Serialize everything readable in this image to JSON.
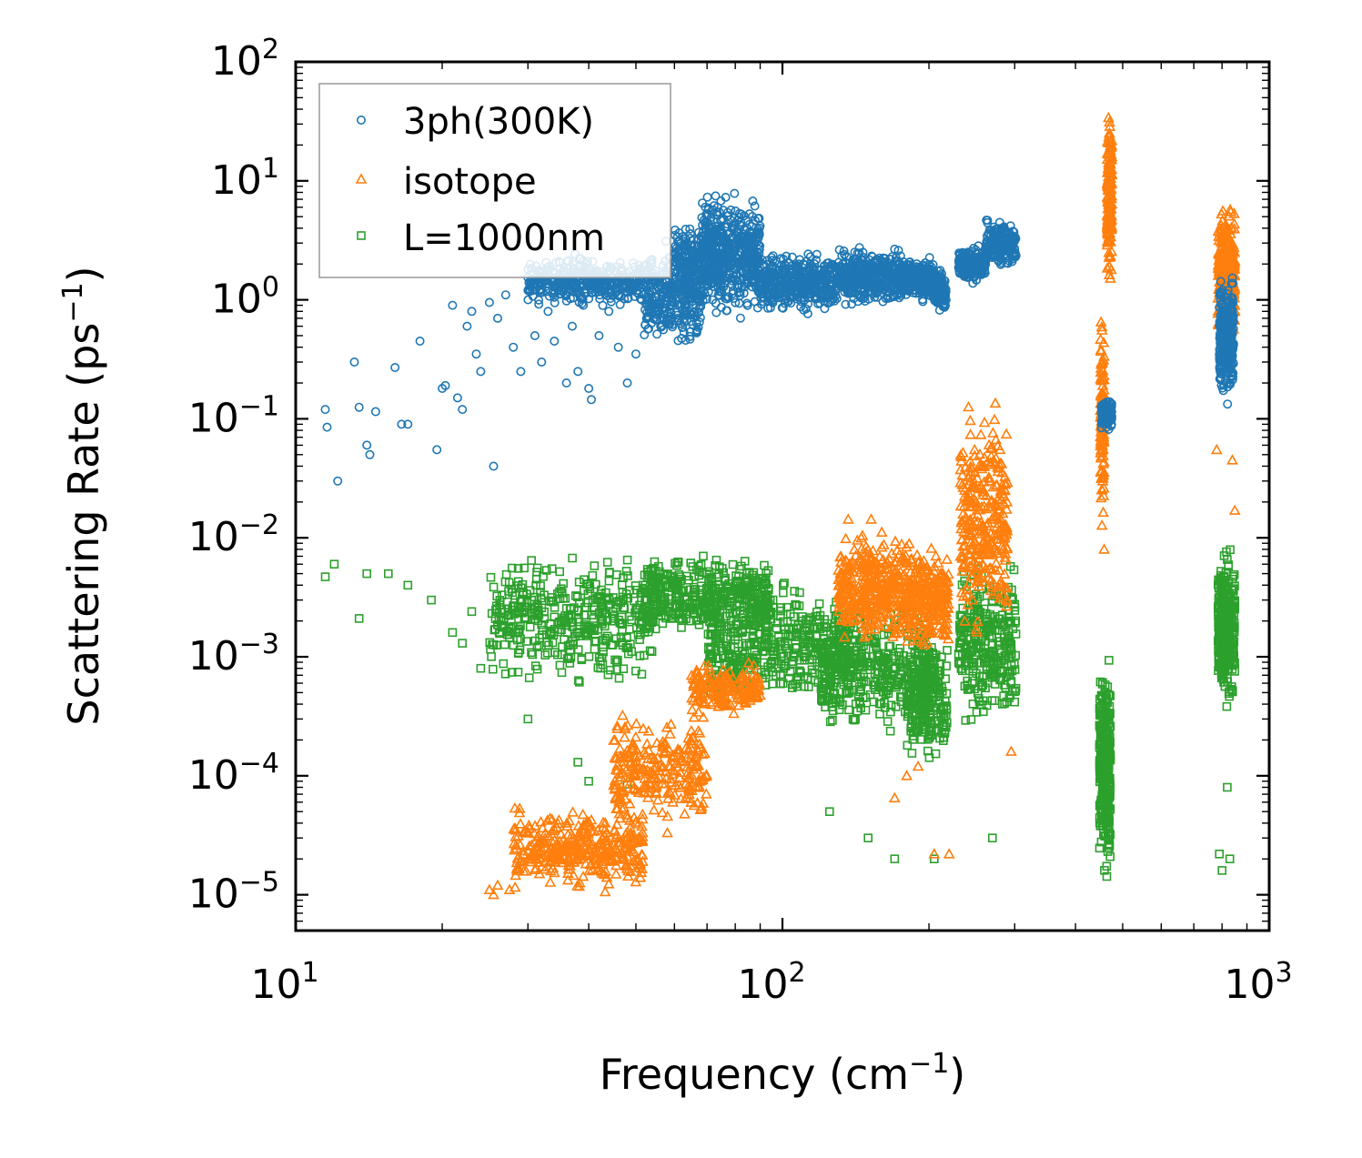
{
  "chart_data": {
    "type": "scatter",
    "title": "",
    "xlabel": "Frequency (cm",
    "xlabel_sup": "−1",
    "xlabel_close": ")",
    "ylabel": "Scattering Rate (ps",
    "ylabel_sup": "−1",
    "ylabel_close": ")",
    "xscale": "log",
    "yscale": "log",
    "xlim": [
      10,
      1000
    ],
    "ylim": [
      5e-06,
      100
    ],
    "x_ticks": [
      {
        "value": 10,
        "base": "10",
        "exp": "1"
      },
      {
        "value": 100,
        "base": "10",
        "exp": "2"
      },
      {
        "value": 1000,
        "base": "10",
        "exp": "3"
      }
    ],
    "y_ticks": [
      {
        "value": 1e-05,
        "base": "10",
        "exp": "−5"
      },
      {
        "value": 0.0001,
        "base": "10",
        "exp": "−4"
      },
      {
        "value": 0.001,
        "base": "10",
        "exp": "−3"
      },
      {
        "value": 0.01,
        "base": "10",
        "exp": "−2"
      },
      {
        "value": 0.1,
        "base": "10",
        "exp": "−1"
      },
      {
        "value": 1,
        "base": "10",
        "exp": "0"
      },
      {
        "value": 10,
        "base": "10",
        "exp": "1"
      },
      {
        "value": 100,
        "base": "10",
        "exp": "2"
      }
    ],
    "legend_position": "top-left",
    "series": [
      {
        "name": "3ph(300K)",
        "marker": "circle",
        "color": "#1f77b4",
        "points": [
          [
            11.5,
            0.12
          ],
          [
            11.6,
            0.085
          ],
          [
            12.2,
            0.03
          ],
          [
            13.2,
            0.3
          ],
          [
            13.5,
            0.125
          ],
          [
            14.0,
            0.06
          ],
          [
            14.2,
            0.05
          ],
          [
            14.6,
            0.115
          ],
          [
            16.0,
            0.27
          ],
          [
            16.5,
            0.09
          ],
          [
            17.0,
            0.09
          ],
          [
            18.0,
            0.45
          ],
          [
            19.5,
            0.055
          ],
          [
            20.0,
            0.18
          ],
          [
            20.3,
            0.19
          ],
          [
            21.0,
            0.9
          ],
          [
            21.5,
            0.15
          ],
          [
            22.0,
            0.12
          ],
          [
            22.5,
            0.6
          ],
          [
            23.0,
            0.8
          ],
          [
            23.5,
            0.35
          ],
          [
            24.0,
            0.25
          ],
          [
            25.0,
            0.95
          ],
          [
            25.5,
            0.04
          ],
          [
            26.0,
            0.7
          ],
          [
            27.0,
            1.1
          ],
          [
            28.0,
            0.4
          ],
          [
            29.0,
            0.25
          ],
          [
            30.0,
            1.2
          ],
          [
            31.0,
            0.5
          ],
          [
            32.0,
            0.3
          ],
          [
            33.0,
            0.8
          ],
          [
            34.0,
            0.45
          ],
          [
            35.0,
            1.3
          ],
          [
            36.0,
            0.2
          ],
          [
            37.0,
            0.6
          ],
          [
            38.0,
            0.25
          ],
          [
            39.0,
            0.9
          ],
          [
            40.0,
            0.18
          ],
          [
            40.5,
            0.145
          ],
          [
            42.0,
            0.5
          ],
          [
            44.0,
            0.8
          ],
          [
            46.0,
            0.4
          ],
          [
            48.0,
            0.2
          ],
          [
            50.0,
            0.35
          ]
        ],
        "clusters": [
          {
            "x": [
              30,
              52
            ],
            "y": [
              0.8,
              2.6
            ],
            "n": 380
          },
          {
            "x": [
              52,
              68
            ],
            "y": [
              0.35,
              3.5
            ],
            "n": 340
          },
          {
            "x": [
              60,
              72
            ],
            "y": [
              1.0,
              5.0
            ],
            "n": 150
          },
          {
            "x": [
              68,
              90
            ],
            "y": [
              0.6,
              10.0
            ],
            "n": 520
          },
          {
            "x": [
              90,
              130
            ],
            "y": [
              0.7,
              2.8
            ],
            "n": 420
          },
          {
            "x": [
              130,
              175
            ],
            "y": [
              0.8,
              3.0
            ],
            "n": 380
          },
          {
            "x": [
              175,
              205
            ],
            "y": [
              0.9,
              2.5
            ],
            "n": 260
          },
          {
            "x": [
              205,
              217
            ],
            "y": [
              0.75,
              1.9
            ],
            "n": 120
          },
          {
            "x": [
              230,
              262
            ],
            "y": [
              1.3,
              3.0
            ],
            "n": 220
          },
          {
            "x": [
              262,
              302
            ],
            "y": [
              1.8,
              5.0
            ],
            "n": 220
          },
          {
            "x": [
              452,
              475
            ],
            "y": [
              0.08,
              0.15
            ],
            "n": 130
          },
          {
            "x": [
              790,
              845
            ],
            "y": [
              0.12,
              1.8
            ],
            "n": 320
          }
        ]
      },
      {
        "name": "isotope",
        "marker": "triangle",
        "color": "#ff7f0e",
        "points": [
          [
            25.0,
            1.1e-05
          ],
          [
            25.5,
            1e-05
          ],
          [
            26.0,
            1.2e-05
          ],
          [
            27.5,
            1.1e-05
          ],
          [
            205,
            2.2e-05
          ],
          [
            220,
            2.2e-05
          ],
          [
            170,
            6.5e-05
          ],
          [
            180,
            0.0001
          ],
          [
            190,
            0.00012
          ],
          [
            295,
            0.00016
          ],
          [
            780,
            0.055
          ],
          [
            840,
            0.045
          ],
          [
            850,
            0.017
          ],
          [
            455,
            0.03
          ],
          [
            458,
            0.008
          ]
        ],
        "clusters": [
          {
            "x": [
              28,
              52
            ],
            "y": [
              1e-05,
              6e-05
            ],
            "n": 360
          },
          {
            "x": [
              45,
              70
            ],
            "y": [
              3e-05,
              0.0004
            ],
            "n": 260
          },
          {
            "x": [
              65,
              90
            ],
            "y": [
              0.0003,
              0.001
            ],
            "n": 180
          },
          {
            "x": [
              130,
              180
            ],
            "y": [
              0.001,
              0.015
            ],
            "n": 380
          },
          {
            "x": [
              180,
              220
            ],
            "y": [
              0.001,
              0.01
            ],
            "n": 260
          },
          {
            "x": [
              232,
              290
            ],
            "y": [
              0.001,
              0.18
            ],
            "n": 320
          },
          {
            "x": [
              450,
              458
            ],
            "y": [
              0.01,
              1.0
            ],
            "n": 120
          },
          {
            "x": [
              465,
              475
            ],
            "y": [
              1.0,
              50.0
            ],
            "n": 180
          },
          {
            "x": [
              785,
              850
            ],
            "y": [
              0.3,
              8.0
            ],
            "n": 340
          }
        ]
      },
      {
        "name": "L=1000nm",
        "marker": "square",
        "color": "#2ca02c",
        "points": [
          [
            11.5,
            0.0047
          ],
          [
            12.0,
            0.006
          ],
          [
            13.5,
            0.0021
          ],
          [
            14.0,
            0.005
          ],
          [
            15.5,
            0.005
          ],
          [
            17.0,
            0.004
          ],
          [
            19.0,
            0.003
          ],
          [
            21.0,
            0.0016
          ],
          [
            22.0,
            0.0013
          ],
          [
            23.0,
            0.0024
          ],
          [
            24.0,
            0.0008
          ],
          [
            30.0,
            0.0003
          ],
          [
            38.0,
            0.00013
          ],
          [
            40.0,
            9e-05
          ],
          [
            48.0,
            8.5e-05
          ],
          [
            125,
            5e-05
          ],
          [
            150,
            3e-05
          ],
          [
            170,
            2e-05
          ],
          [
            205,
            2e-05
          ],
          [
            270,
            3e-05
          ],
          [
            790,
            2.2e-05
          ],
          [
            800,
            1.6e-05
          ],
          [
            830,
            2e-05
          ],
          [
            820,
            8e-05
          ]
        ],
        "clusters": [
          {
            "x": [
              25,
              55
            ],
            "y": [
              0.0005,
              0.009
            ],
            "n": 420
          },
          {
            "x": [
              52,
              95
            ],
            "y": [
              0.0012,
              0.008
            ],
            "n": 420
          },
          {
            "x": [
              70,
              140
            ],
            "y": [
              0.0003,
              0.005
            ],
            "n": 460
          },
          {
            "x": [
              120,
              205
            ],
            "y": [
              0.0002,
              0.003
            ],
            "n": 380
          },
          {
            "x": [
              180,
              218
            ],
            "y": [
              0.0001,
              0.002
            ],
            "n": 200
          },
          {
            "x": [
              230,
              302
            ],
            "y": [
              0.0002,
              0.008
            ],
            "n": 300
          },
          {
            "x": [
              448,
              472
            ],
            "y": [
              1e-05,
              0.0015
            ],
            "n": 340
          },
          {
            "x": [
              785,
              850
            ],
            "y": [
              0.0003,
              0.01
            ],
            "n": 340
          }
        ]
      }
    ]
  }
}
